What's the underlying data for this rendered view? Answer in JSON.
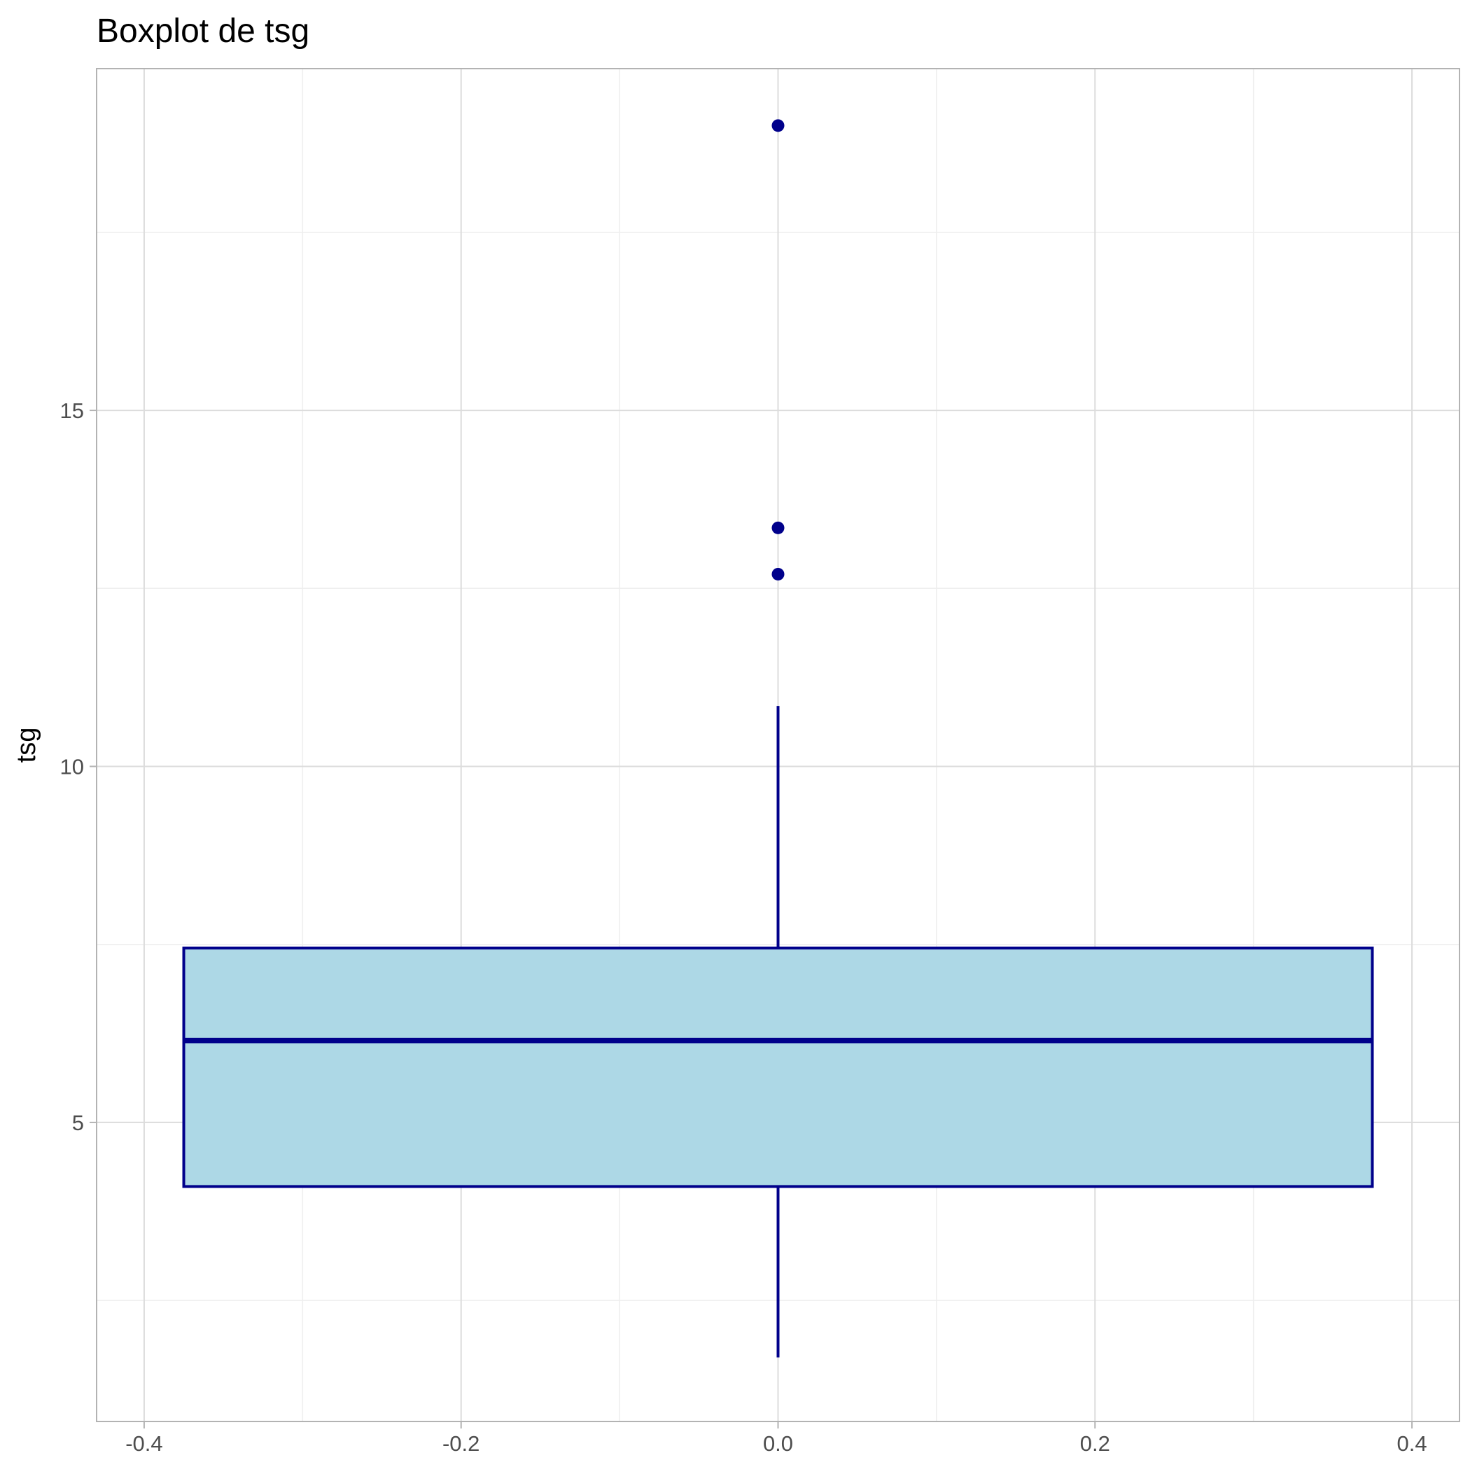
{
  "chart_data": {
    "type": "boxplot",
    "title": "Boxplot de tsg",
    "xlabel": "",
    "ylabel": "tsg",
    "xlim": [
      -0.43,
      0.43
    ],
    "ylim": [
      0.8,
      19.8
    ],
    "x_ticks": [
      -0.4,
      -0.2,
      0.0,
      0.2,
      0.4
    ],
    "x_tick_labels": [
      "-0.4",
      "-0.2",
      "0.0",
      "0.2",
      "0.4"
    ],
    "y_ticks": [
      5,
      10,
      15
    ],
    "y_tick_labels": [
      "5",
      "10",
      "15"
    ],
    "grid": true,
    "box": {
      "x_center": 0.0,
      "x_min": -0.375,
      "x_max": 0.375,
      "lower_whisker": 1.7,
      "q1": 4.1,
      "median": 6.15,
      "q3": 7.45,
      "upper_whisker": 10.85
    },
    "outliers": [
      19.0,
      13.35,
      12.7
    ],
    "fill_color": "#add8e6",
    "line_color": "#00008b"
  }
}
